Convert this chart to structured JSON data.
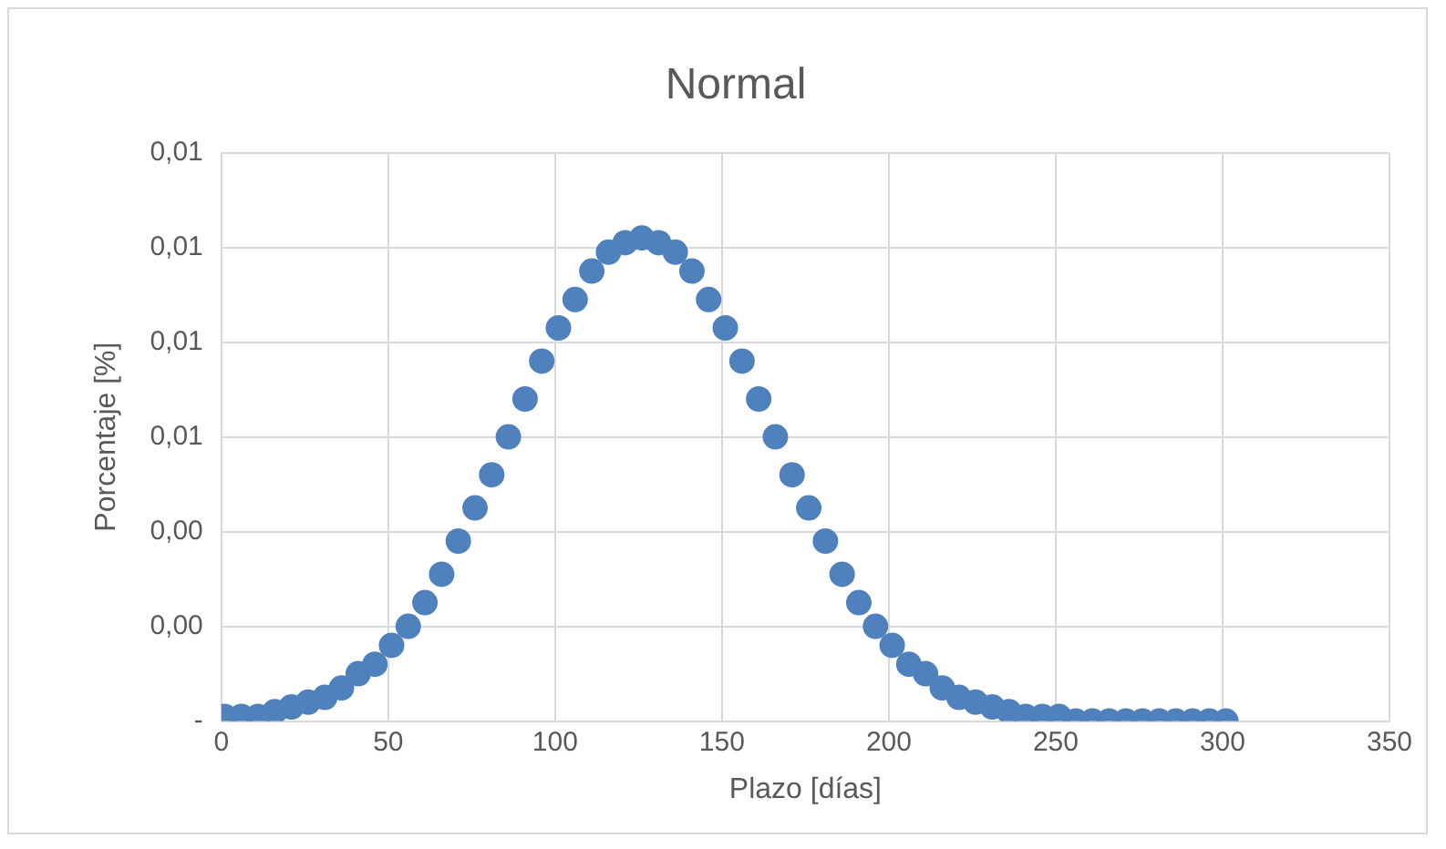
{
  "chart_data": {
    "type": "scatter",
    "title": "Normal",
    "xlabel": "Plazo [días]",
    "ylabel": "Porcentaje [%]",
    "x": [
      1,
      6,
      11,
      16,
      21,
      26,
      31,
      36,
      41,
      46,
      51,
      56,
      61,
      66,
      71,
      76,
      81,
      86,
      91,
      96,
      101,
      106,
      111,
      116,
      121,
      126,
      131,
      136,
      141,
      146,
      151,
      156,
      161,
      166,
      171,
      176,
      181,
      186,
      191,
      196,
      201,
      206,
      211,
      216,
      221,
      226,
      231,
      236,
      241,
      246,
      251,
      256,
      261,
      266,
      271,
      276,
      281,
      286,
      291,
      296,
      301
    ],
    "series": [
      {
        "color": "#4f81bd",
        "values": [
          0.0001,
          0.0001,
          0.0001,
          0.0002,
          0.0003,
          0.0004,
          0.0005,
          0.0007,
          0.001,
          0.0012,
          0.0016,
          0.002,
          0.0025,
          0.0031,
          0.0038,
          0.0045,
          0.0052,
          0.006,
          0.0068,
          0.0076,
          0.0083,
          0.0089,
          0.0095,
          0.0099,
          0.0101,
          0.0102,
          0.0101,
          0.0099,
          0.0095,
          0.0089,
          0.0083,
          0.0076,
          0.0068,
          0.006,
          0.0052,
          0.0045,
          0.0038,
          0.0031,
          0.0025,
          0.002,
          0.0016,
          0.0012,
          0.001,
          0.0007,
          0.0005,
          0.0004,
          0.0003,
          0.0002,
          0.0001,
          0.0001,
          0.0001,
          0,
          0,
          0,
          0,
          0,
          0,
          0,
          0,
          0,
          0
        ]
      }
    ],
    "xlim": [
      0,
      350
    ],
    "xticks": [
      0,
      50,
      100,
      150,
      200,
      250,
      300,
      350
    ],
    "ylim": [
      0,
      0.012
    ],
    "yticks": [
      {
        "value": 0,
        "label": "-"
      },
      {
        "value": 0.002,
        "label": "0,00"
      },
      {
        "value": 0.004,
        "label": "0,00"
      },
      {
        "value": 0.006,
        "label": "0,01"
      },
      {
        "value": 0.008,
        "label": "0,01"
      },
      {
        "value": 0.01,
        "label": "0,01"
      },
      {
        "value": 0.012,
        "label": "0,01"
      }
    ],
    "grid": true,
    "legend": false,
    "marker": "circle"
  }
}
